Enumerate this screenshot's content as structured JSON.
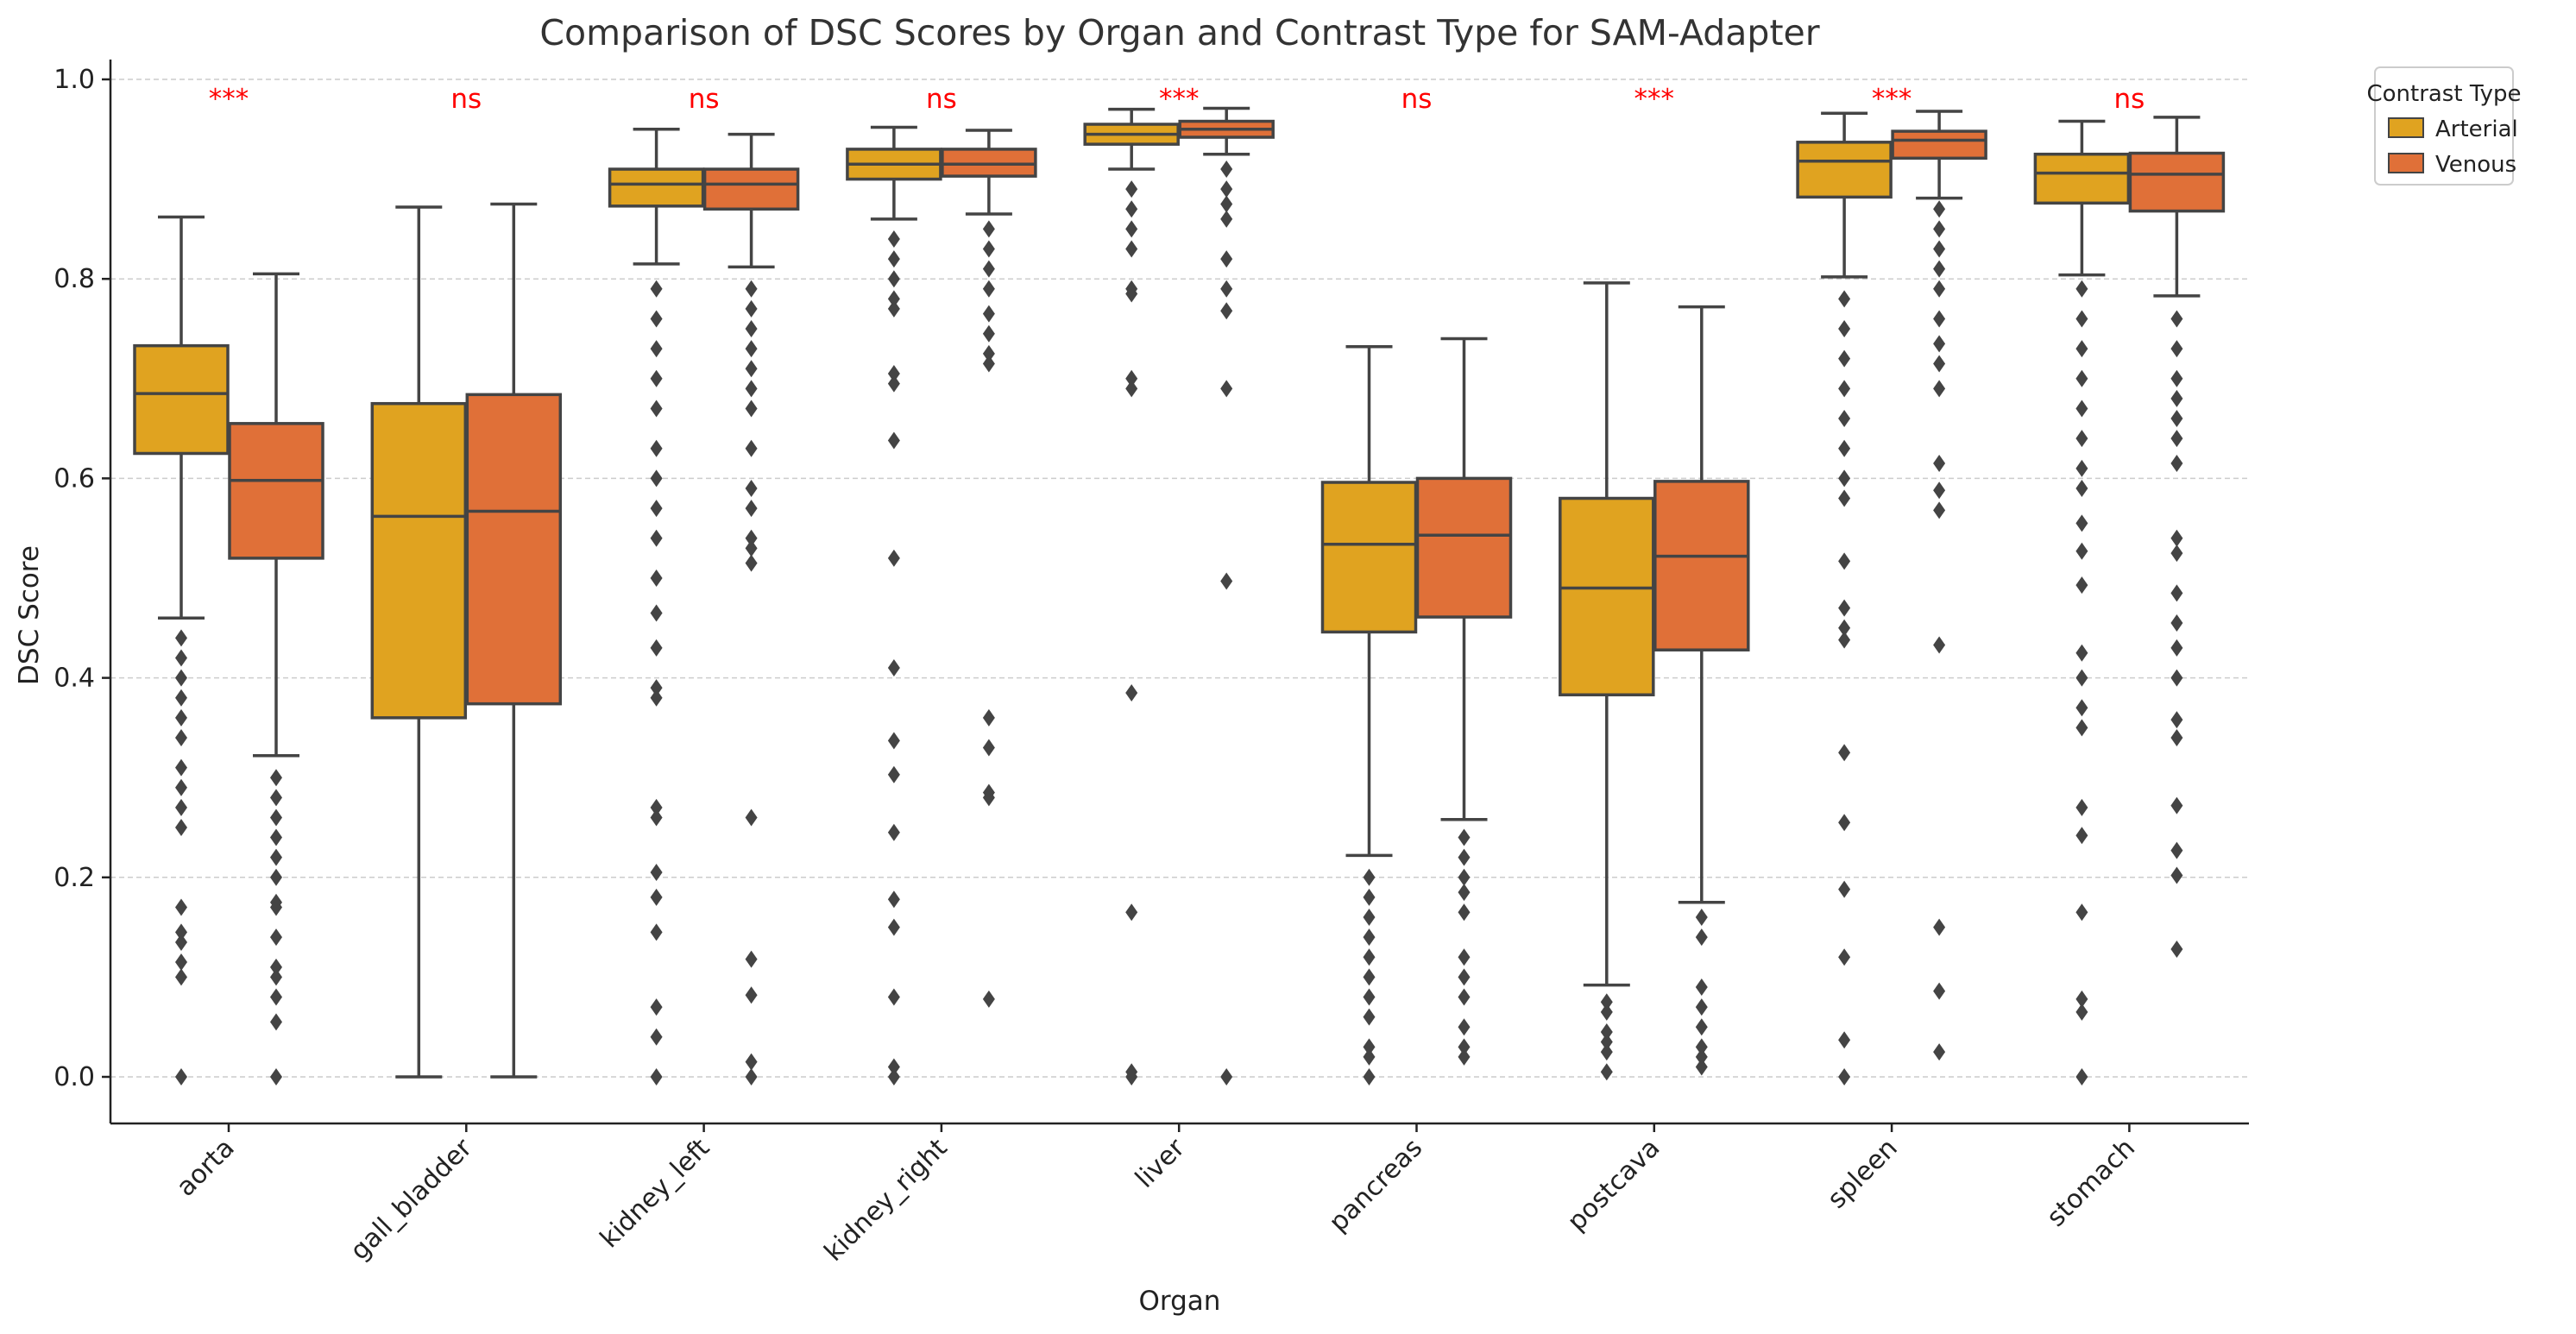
{
  "chart_data": {
    "type": "box",
    "title": "Comparison of DSC Scores by Organ and Contrast Type for SAM-Adapter",
    "xlabel": "Organ",
    "ylabel": "DSC Score",
    "ylim": [
      -0.05,
      1.02
    ],
    "yticks": [
      0.0,
      0.2,
      0.4,
      0.6,
      0.8,
      1.0
    ],
    "ytick_labels": [
      "0.0",
      "0.2",
      "0.4",
      "0.6",
      "0.8",
      "1.0"
    ],
    "grid": "horizontal dashed",
    "legend": {
      "title": "Contrast Type",
      "placement": "outside top-right",
      "entries": [
        {
          "name": "Arterial",
          "color": "#e0a320"
        },
        {
          "name": "Venous",
          "color": "#e07038"
        }
      ]
    },
    "categories": [
      "aorta",
      "gall_bladder",
      "kidney_left",
      "kidney_right",
      "liver",
      "pancreas",
      "postcava",
      "spleen",
      "stomach"
    ],
    "significance": [
      "***",
      "ns",
      "ns",
      "ns",
      "***",
      "ns",
      "***",
      "***",
      "ns"
    ],
    "series": [
      {
        "name": "Arterial",
        "color": "#e0a320",
        "boxes": [
          {
            "whislo": 0.46,
            "q1": 0.625,
            "med": 0.685,
            "q3": 0.733,
            "whishi": 0.862,
            "fliers": [
              0.44,
              0.42,
              0.4,
              0.38,
              0.36,
              0.34,
              0.31,
              0.29,
              0.27,
              0.25,
              0.17,
              0.145,
              0.135,
              0.115,
              0.1,
              0.0
            ]
          },
          {
            "whislo": 0.0,
            "q1": 0.36,
            "med": 0.562,
            "q3": 0.675,
            "whishi": 0.872,
            "fliers": []
          },
          {
            "whislo": 0.815,
            "q1": 0.873,
            "med": 0.895,
            "q3": 0.91,
            "whishi": 0.95,
            "fliers": [
              0.79,
              0.76,
              0.73,
              0.7,
              0.67,
              0.63,
              0.6,
              0.57,
              0.54,
              0.5,
              0.465,
              0.43,
              0.39,
              0.38,
              0.27,
              0.26,
              0.205,
              0.18,
              0.145,
              0.07,
              0.04,
              0.0
            ]
          },
          {
            "whislo": 0.86,
            "q1": 0.9,
            "med": 0.915,
            "q3": 0.93,
            "whishi": 0.952,
            "fliers": [
              0.84,
              0.82,
              0.8,
              0.78,
              0.77,
              0.705,
              0.695,
              0.638,
              0.52,
              0.41,
              0.337,
              0.303,
              0.245,
              0.178,
              0.15,
              0.08,
              0.01,
              0.0
            ]
          },
          {
            "whislo": 0.91,
            "q1": 0.935,
            "med": 0.945,
            "q3": 0.955,
            "whishi": 0.97,
            "fliers": [
              0.89,
              0.87,
              0.85,
              0.83,
              0.79,
              0.785,
              0.7,
              0.69,
              0.385,
              0.165,
              0.005,
              0.0
            ]
          },
          {
            "whislo": 0.222,
            "q1": 0.446,
            "med": 0.534,
            "q3": 0.596,
            "whishi": 0.732,
            "fliers": [
              0.2,
              0.18,
              0.16,
              0.14,
              0.12,
              0.1,
              0.08,
              0.06,
              0.03,
              0.02,
              0.0
            ]
          },
          {
            "whislo": 0.092,
            "q1": 0.383,
            "med": 0.49,
            "q3": 0.58,
            "whishi": 0.796,
            "fliers": [
              0.075,
              0.065,
              0.045,
              0.035,
              0.025,
              0.005
            ]
          },
          {
            "whislo": 0.802,
            "q1": 0.882,
            "med": 0.918,
            "q3": 0.937,
            "whishi": 0.966,
            "fliers": [
              0.78,
              0.75,
              0.72,
              0.69,
              0.66,
              0.63,
              0.6,
              0.58,
              0.517,
              0.47,
              0.45,
              0.438,
              0.325,
              0.255,
              0.188,
              0.12,
              0.037,
              0.0
            ]
          },
          {
            "whislo": 0.804,
            "q1": 0.876,
            "med": 0.906,
            "q3": 0.925,
            "whishi": 0.958,
            "fliers": [
              0.79,
              0.76,
              0.73,
              0.7,
              0.67,
              0.64,
              0.61,
              0.59,
              0.555,
              0.527,
              0.493,
              0.425,
              0.4,
              0.37,
              0.35,
              0.27,
              0.242,
              0.165,
              0.078,
              0.065,
              0.0
            ]
          }
        ]
      },
      {
        "name": "Venous",
        "color": "#e07038",
        "boxes": [
          {
            "whislo": 0.322,
            "q1": 0.52,
            "med": 0.598,
            "q3": 0.655,
            "whishi": 0.805,
            "fliers": [
              0.3,
              0.28,
              0.26,
              0.24,
              0.22,
              0.2,
              0.175,
              0.17,
              0.14,
              0.11,
              0.1,
              0.08,
              0.055,
              0.0
            ]
          },
          {
            "whislo": 0.0,
            "q1": 0.374,
            "med": 0.567,
            "q3": 0.684,
            "whishi": 0.875,
            "fliers": []
          },
          {
            "whislo": 0.812,
            "q1": 0.87,
            "med": 0.895,
            "q3": 0.91,
            "whishi": 0.945,
            "fliers": [
              0.79,
              0.77,
              0.75,
              0.73,
              0.71,
              0.69,
              0.67,
              0.63,
              0.59,
              0.57,
              0.54,
              0.53,
              0.515,
              0.26,
              0.118,
              0.082,
              0.015,
              0.0
            ]
          },
          {
            "whislo": 0.865,
            "q1": 0.903,
            "med": 0.915,
            "q3": 0.93,
            "whishi": 0.949,
            "fliers": [
              0.85,
              0.83,
              0.81,
              0.79,
              0.765,
              0.745,
              0.725,
              0.715,
              0.36,
              0.33,
              0.285,
              0.28,
              0.078
            ]
          },
          {
            "whislo": 0.925,
            "q1": 0.942,
            "med": 0.95,
            "q3": 0.958,
            "whishi": 0.971,
            "fliers": [
              0.91,
              0.89,
              0.875,
              0.86,
              0.82,
              0.79,
              0.768,
              0.69,
              0.497,
              0.0
            ]
          },
          {
            "whislo": 0.258,
            "q1": 0.461,
            "med": 0.543,
            "q3": 0.6,
            "whishi": 0.74,
            "fliers": [
              0.24,
              0.22,
              0.2,
              0.185,
              0.165,
              0.12,
              0.1,
              0.08,
              0.05,
              0.03,
              0.02
            ]
          },
          {
            "whislo": 0.175,
            "q1": 0.428,
            "med": 0.522,
            "q3": 0.597,
            "whishi": 0.772,
            "fliers": [
              0.16,
              0.14,
              0.09,
              0.07,
              0.05,
              0.03,
              0.02,
              0.01
            ]
          },
          {
            "whislo": 0.881,
            "q1": 0.921,
            "med": 0.939,
            "q3": 0.948,
            "whishi": 0.968,
            "fliers": [
              0.87,
              0.85,
              0.83,
              0.81,
              0.79,
              0.76,
              0.735,
              0.715,
              0.69,
              0.615,
              0.588,
              0.568,
              0.433,
              0.15,
              0.086,
              0.025
            ]
          },
          {
            "whislo": 0.783,
            "q1": 0.868,
            "med": 0.905,
            "q3": 0.926,
            "whishi": 0.962,
            "fliers": [
              0.76,
              0.73,
              0.7,
              0.68,
              0.66,
              0.64,
              0.615,
              0.54,
              0.525,
              0.485,
              0.455,
              0.43,
              0.4,
              0.358,
              0.34,
              0.272,
              0.227,
              0.202,
              0.128
            ]
          }
        ]
      }
    ]
  }
}
